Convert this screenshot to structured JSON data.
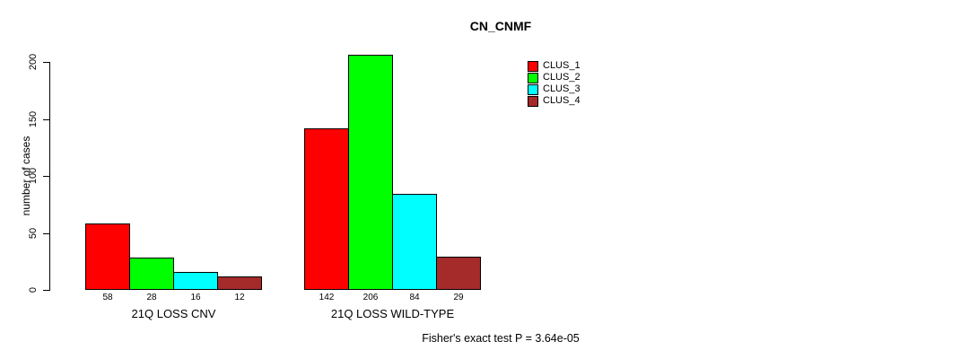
{
  "chart_data": {
    "type": "bar",
    "title": "CN_CNMF",
    "ylabel": "number of cases",
    "xlabel": "",
    "ylim": [
      0,
      200
    ],
    "yticks": [
      0,
      50,
      100,
      150,
      200
    ],
    "grid": false,
    "legend_position": "top-right",
    "categories": [
      "21Q LOSS CNV",
      "21Q LOSS WILD-TYPE"
    ],
    "series": [
      {
        "name": "CLUS_1",
        "color": "#FF0000",
        "values": [
          58,
          142
        ]
      },
      {
        "name": "CLUS_2",
        "color": "#00FF00",
        "values": [
          28,
          206
        ]
      },
      {
        "name": "CLUS_3",
        "color": "#00FFFF",
        "values": [
          16,
          84
        ]
      },
      {
        "name": "CLUS_4",
        "color": "#A52A2A",
        "values": [
          12,
          29
        ]
      }
    ],
    "bar_value_labels": [
      58,
      28,
      16,
      12,
      142,
      206,
      84,
      29
    ],
    "annotation": "Fisher's exact test P = 3.64e-05"
  }
}
